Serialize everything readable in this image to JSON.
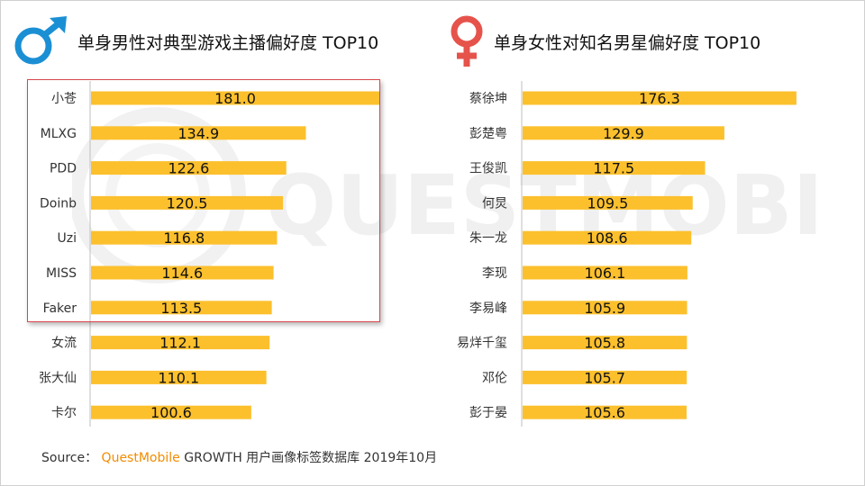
{
  "colors": {
    "bar": "#fcc02d",
    "male_icon": "#1b8fd4",
    "female_icon": "#e5534b",
    "highlight_border": "#d9464b",
    "source_brand": "#f28c00"
  },
  "icons": {
    "left": "male-symbol",
    "right": "female-symbol"
  },
  "watermark": {
    "text": "QUESTMOBILE"
  },
  "source": {
    "label": "Source：",
    "brand": "QuestMobile",
    "text": "GROWTH 用户画像标签数据库 2019年10月"
  },
  "chart_data": [
    {
      "type": "bar",
      "orientation": "horizontal",
      "title": "单身男性对典型游戏主播偏好度 TOP10",
      "categories": [
        "小苍",
        "MLXG",
        "PDD",
        "Doinb",
        "Uzi",
        "MISS",
        "Faker",
        "女流",
        "张大仙",
        "卡尔"
      ],
      "values": [
        181.0,
        134.9,
        122.6,
        120.5,
        116.8,
        114.6,
        113.5,
        112.1,
        110.1,
        100.6
      ],
      "value_labels": [
        "181.0",
        "134.9",
        "122.6",
        "120.5",
        "116.8",
        "114.6",
        "113.5",
        "112.1",
        "110.1",
        "100.6"
      ],
      "highlighted_categories": [
        "小苍",
        "MLXG",
        "PDD",
        "Doinb",
        "Uzi",
        "MISS",
        "Faker"
      ],
      "xlim": [
        0,
        181.0
      ],
      "grid": false,
      "legend": "none"
    },
    {
      "type": "bar",
      "orientation": "horizontal",
      "title": "单身女性对知名男星偏好度 TOP10",
      "categories": [
        "蔡徐坤",
        "彭楚粤",
        "王俊凯",
        "何炅",
        "朱一龙",
        "李现",
        "李易峰",
        "易烊千玺",
        "邓伦",
        "彭于晏"
      ],
      "values": [
        176.3,
        129.9,
        117.5,
        109.5,
        108.6,
        106.1,
        105.9,
        105.8,
        105.7,
        105.6
      ],
      "value_labels": [
        "176.3",
        "129.9",
        "117.5",
        "109.5",
        "108.6",
        "106.1",
        "105.9",
        "105.8",
        "105.7",
        "105.6"
      ],
      "xlim": [
        0,
        181.0
      ],
      "grid": false,
      "legend": "none"
    }
  ]
}
